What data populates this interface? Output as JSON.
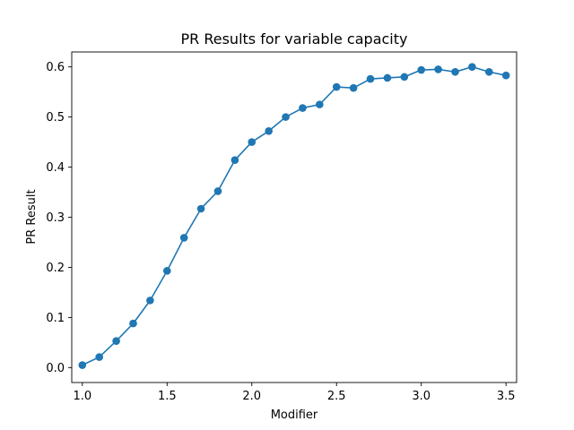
{
  "chart_data": {
    "type": "line",
    "title": "PR Results for variable capacity",
    "xlabel": "Modifier",
    "ylabel": "PR Result",
    "xlim": [
      0.9375,
      3.5625
    ],
    "ylim": [
      -0.0298,
      0.6298
    ],
    "xticks": [
      1.0,
      1.5,
      2.0,
      2.5,
      3.0,
      3.5
    ],
    "xtick_labels": [
      "1.0",
      "1.5",
      "2.0",
      "2.5",
      "3.0",
      "3.5"
    ],
    "yticks": [
      0.0,
      0.1,
      0.2,
      0.3,
      0.4,
      0.5,
      0.6
    ],
    "ytick_labels": [
      "0.0",
      "0.1",
      "0.2",
      "0.3",
      "0.4",
      "0.5",
      "0.6"
    ],
    "grid": false,
    "legend": "none",
    "color": "#1f77b4",
    "marker": "circle",
    "series": [
      {
        "x": [
          1.0,
          1.1,
          1.2,
          1.3,
          1.4,
          1.5,
          1.6,
          1.7,
          1.8,
          1.9,
          2.0,
          2.1,
          2.2,
          2.3,
          2.4,
          2.5,
          2.6,
          2.7,
          2.8,
          2.9,
          3.0,
          3.1,
          3.2,
          3.3,
          3.4,
          3.5
        ],
        "values": [
          0.005,
          0.021,
          0.053,
          0.088,
          0.134,
          0.193,
          0.259,
          0.317,
          0.352,
          0.414,
          0.45,
          0.472,
          0.5,
          0.518,
          0.525,
          0.56,
          0.558,
          0.576,
          0.578,
          0.58,
          0.594,
          0.595,
          0.59,
          0.6,
          0.59,
          0.583
        ]
      }
    ]
  }
}
